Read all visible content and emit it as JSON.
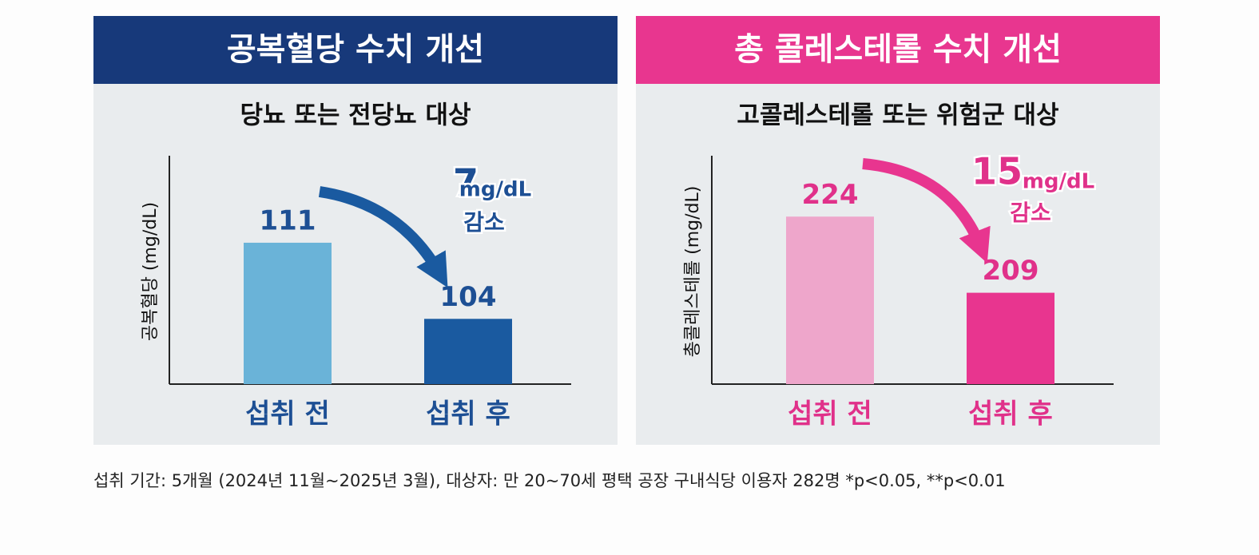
{
  "chart_data": [
    {
      "type": "bar",
      "title": "공복혈당 수치 개선",
      "subtitle": "당뇨 또는 전당뇨 대상",
      "y_label": "공복혈당 (mg/dL)",
      "categories": [
        "섭취 전",
        "섭취 후"
      ],
      "values": [
        111,
        104
      ],
      "colors": [
        "#6ab3d8",
        "#1a5aa0"
      ],
      "accent_color": "#17397a",
      "label_color": "#1d4f94",
      "ylim": [
        98,
        119
      ],
      "annotation": {
        "number": "7",
        "unit": "mg/dL",
        "text": "감소"
      }
    },
    {
      "type": "bar",
      "title": "총 콜레스테롤 수치 개선",
      "subtitle": "고콜레스테롤 또는 위험군 대상",
      "y_label": "총콜레스테롤 (mg/dL)",
      "categories": [
        "섭취 전",
        "섭취 후"
      ],
      "values": [
        224,
        209
      ],
      "colors": [
        "#eea6cb",
        "#e8358f"
      ],
      "accent_color": "#e8368f",
      "label_color": "#e0318a",
      "ylim": [
        191,
        236
      ],
      "annotation": {
        "number": "15",
        "unit": "mg/dL",
        "text": "감소"
      }
    }
  ],
  "footnote": "섭취 기간: 5개월 (2024년 11월~2025년 3월), 대상자: 만 20~70세 평택 공장 구내식당 이용자 282명 *p<0.05, **p<0.01"
}
